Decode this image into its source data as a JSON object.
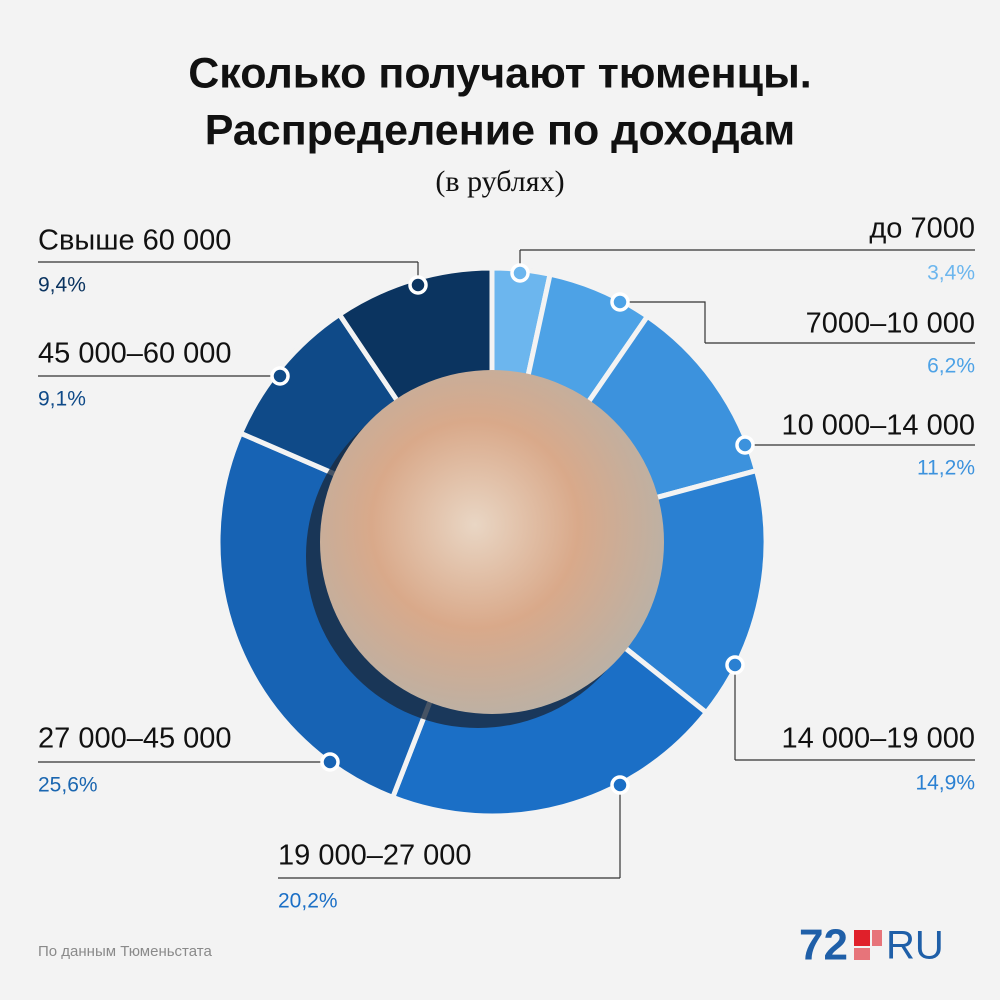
{
  "chart_data": {
    "type": "pie",
    "title": [
      "Сколько получают тюменцы.",
      "Распределение по доходам"
    ],
    "subtitle": "(в рублях)",
    "categories": [
      "до 7000",
      "7000–10 000",
      "10 000–14 000",
      "14 000–19 000",
      "19 000–27 000",
      "27 000–45 000",
      "45 000–60 000",
      "Свыше 60 000"
    ],
    "values": [
      3.4,
      6.2,
      11.2,
      14.9,
      20.2,
      25.6,
      9.1,
      9.4
    ],
    "value_labels": [
      "3,4%",
      "6,2%",
      "11,2%",
      "14,9%",
      "20,2%",
      "25,6%",
      "9,1%",
      "9,4%"
    ],
    "colors": [
      "#6cb6ee",
      "#4da2e6",
      "#3c92dd",
      "#2a80d2",
      "#1b6fc6",
      "#1763b4",
      "#0f4a88",
      "#0b3460"
    ],
    "label_colors": [
      "#6cb6ee",
      "#4da2e6",
      "#3c92dd",
      "#2a80d2",
      "#1b6fc6",
      "#1a66b0",
      "#0f4a88",
      "#0b3460"
    ]
  },
  "source": "По данным Тюменьстата",
  "logo": {
    "number": "72",
    "suffix": "RU"
  }
}
